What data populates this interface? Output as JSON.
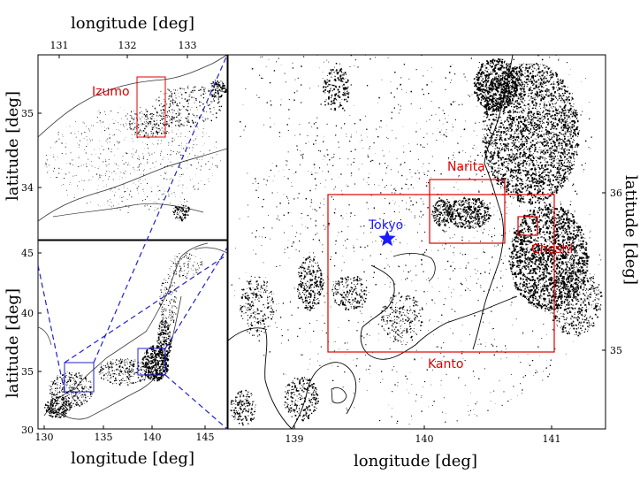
{
  "colors": {
    "box": "#e00000",
    "zoom": "#2020d0",
    "marker": "#1a1aff",
    "dots": "#000000"
  },
  "inset_top": {
    "x_axis_title": "longitude [deg]",
    "y_axis_title": "latitude [deg]",
    "x_ticks": [
      "131",
      "132",
      "133"
    ],
    "y_ticks": [
      "35",
      "34"
    ],
    "region_label": "Izumo"
  },
  "inset_bottom": {
    "x_axis_title": "longitude [deg]",
    "y_axis_title": "latitude [deg]",
    "x_ticks": [
      "130",
      "135",
      "140",
      "145"
    ],
    "y_ticks": [
      "45",
      "40",
      "35",
      "30"
    ]
  },
  "main": {
    "x_axis_title": "longitude [deg]",
    "y_axis_title": "latitude [deg]",
    "x_ticks": [
      "139",
      "140",
      "141"
    ],
    "y_ticks": [
      "36",
      "35"
    ],
    "labels": {
      "narita": "Narita",
      "choshi": "Choshi",
      "kanto": "Kanto",
      "tokyo": "Tokyo"
    },
    "marker_icon": "star-icon"
  }
}
